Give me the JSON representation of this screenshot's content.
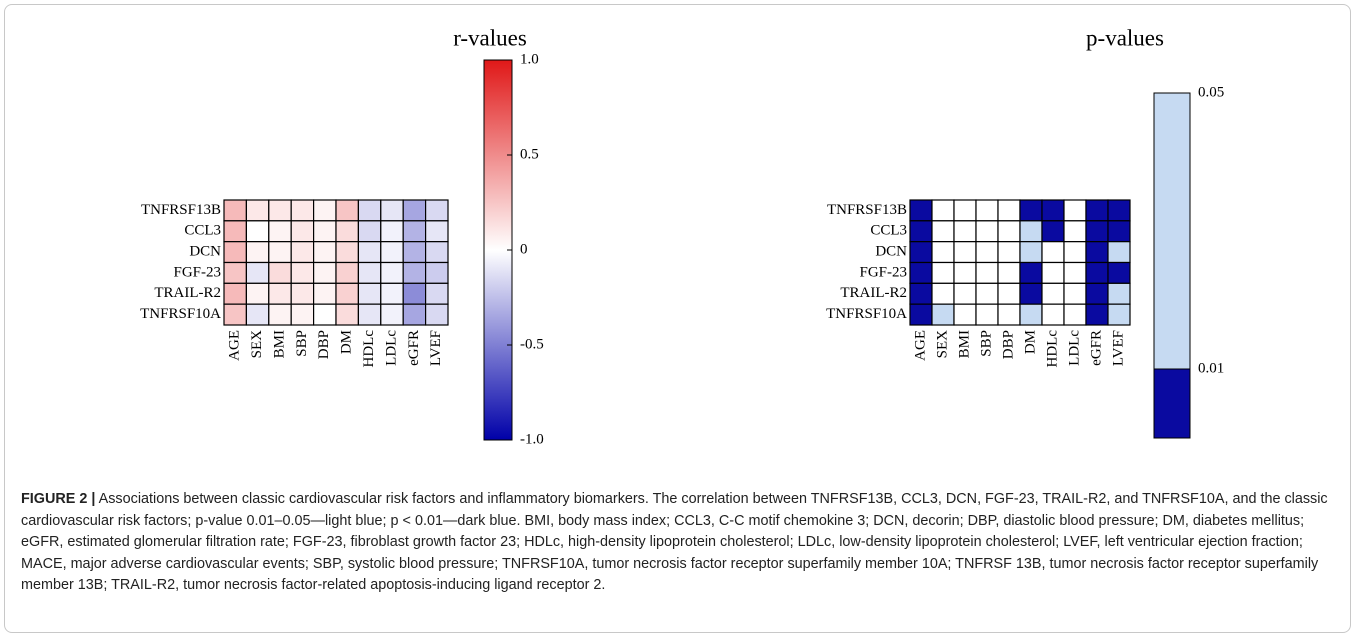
{
  "chart_data": [
    {
      "type": "heatmap",
      "title": "r-values",
      "rows": [
        "TNFRSF13B",
        "CCL3",
        "DCN",
        "FGF-23",
        "TRAIL-R2",
        "TNFRSF10A"
      ],
      "categories": [
        "AGE",
        "SEX",
        "BMI",
        "SBP",
        "DBP",
        "DM",
        "HDLc",
        "LDLc",
        "eGFR",
        "LVEF"
      ],
      "values": [
        [
          0.3,
          0.1,
          0.1,
          0.1,
          0.05,
          0.25,
          -0.15,
          -0.1,
          -0.35,
          -0.15
        ],
        [
          0.3,
          0.0,
          0.05,
          0.1,
          0.05,
          0.15,
          -0.15,
          -0.05,
          -0.3,
          -0.1
        ],
        [
          0.3,
          0.05,
          0.05,
          0.1,
          0.05,
          0.15,
          -0.1,
          -0.05,
          -0.3,
          -0.15
        ],
        [
          0.25,
          -0.1,
          0.15,
          0.1,
          0.05,
          0.2,
          -0.1,
          -0.05,
          -0.3,
          -0.2
        ],
        [
          0.3,
          0.05,
          0.1,
          0.1,
          0.05,
          0.2,
          -0.1,
          -0.05,
          -0.45,
          -0.15
        ],
        [
          0.25,
          -0.1,
          0.05,
          0.05,
          0.0,
          0.15,
          -0.1,
          -0.05,
          -0.35,
          -0.15
        ]
      ],
      "colormap": [
        "#0000a8",
        "#ffffff",
        "#e01818"
      ],
      "zlim": [
        -1,
        1
      ],
      "zticks": [
        {
          "value": -1,
          "label": "-1.0"
        },
        -0.5,
        0,
        0.5,
        {
          "value": 1,
          "label": "1.0"
        }
      ]
    },
    {
      "type": "threshold-heatmap",
      "title": "p-values",
      "rows": [
        "TNFRSF13B",
        "CCL3",
        "DCN",
        "FGF-23",
        "TRAIL-R2",
        "TNFRSF10A"
      ],
      "categories": [
        "AGE",
        "SEX",
        "BMI",
        "SBP",
        "DBP",
        "DM",
        "HDLc",
        "LDLc",
        "eGFR",
        "LVEF"
      ],
      "values": [
        [
          0.005,
          null,
          null,
          null,
          null,
          0.005,
          0.005,
          null,
          0.005,
          0.005
        ],
        [
          0.005,
          null,
          null,
          null,
          null,
          0.03,
          0.005,
          null,
          0.005,
          0.005
        ],
        [
          0.005,
          null,
          null,
          null,
          null,
          0.03,
          null,
          null,
          0.005,
          0.03
        ],
        [
          0.005,
          null,
          null,
          null,
          null,
          0.005,
          null,
          null,
          0.005,
          0.005
        ],
        [
          0.005,
          null,
          null,
          null,
          null,
          0.005,
          null,
          null,
          0.005,
          0.03
        ],
        [
          0.005,
          0.03,
          null,
          null,
          null,
          0.03,
          null,
          null,
          0.005,
          0.03
        ]
      ],
      "thresholds": [
        0.01,
        0.05
      ],
      "colors": [
        "#0a0aa0",
        "#c6daf2"
      ],
      "zlim": [
        0,
        0.05
      ],
      "zticks": [
        0.01,
        0.05
      ]
    }
  ],
  "caption": {
    "label": "FIGURE 2 |",
    "text": "Associations between classic cardiovascular risk factors and inflammatory biomarkers. The correlation between TNFRSF13B, CCL3, DCN, FGF-23, TRAIL-R2, and TNFRSF10A, and the classic cardiovascular risk factors; p-value 0.01–0.05—light blue; p < 0.01—dark blue. BMI, body mass index; CCL3, C-C motif chemokine 3; DCN, decorin; DBP, diastolic blood pressure; DM, diabetes mellitus; eGFR, estimated glomerular filtration rate; FGF-23, fibroblast growth factor 23; HDLc, high-density lipoprotein cholesterol; LDLc, low-density lipoprotein cholesterol; LVEF, left ventricular ejection fraction; MACE, major adverse cardiovascular events; SBP, systolic blood pressure; TNFRSF10A, tumor necrosis factor receptor superfamily member 10A; TNFRSF 13B, tumor necrosis factor receptor superfamily member 13B; TRAIL-R2, tumor necrosis factor-related apoptosis-inducing ligand receptor 2."
  }
}
